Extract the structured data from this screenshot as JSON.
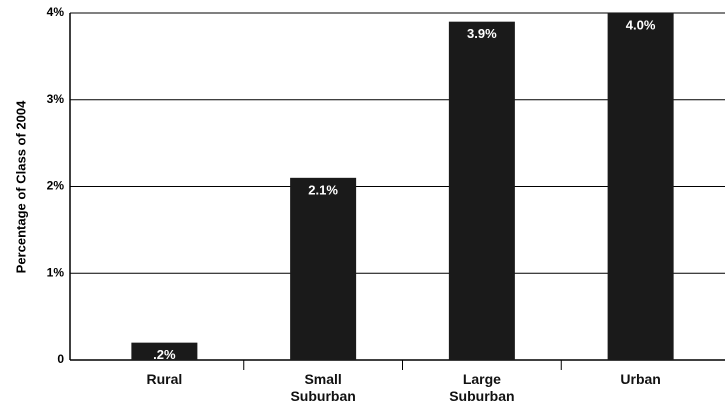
{
  "chart_data": {
    "type": "bar",
    "y_label": "Percentage of Class of 2004",
    "categories": [
      "Rural",
      "Small Suburban",
      "Large Suburban",
      "Urban"
    ],
    "values": [
      0.2,
      2.1,
      3.9,
      4.0
    ],
    "value_labels": [
      ".2%",
      "2.1%",
      "3.9%",
      "4.0%"
    ],
    "color": "#1a1a1a",
    "ylim": [
      0,
      4
    ],
    "yticks": [
      0,
      {
        "value": 1,
        "label": "1%"
      },
      {
        "value": 2,
        "label": "2%"
      },
      {
        "value": 3,
        "label": "3%"
      },
      {
        "value": 4,
        "label": "4%"
      }
    ],
    "grid": true
  }
}
